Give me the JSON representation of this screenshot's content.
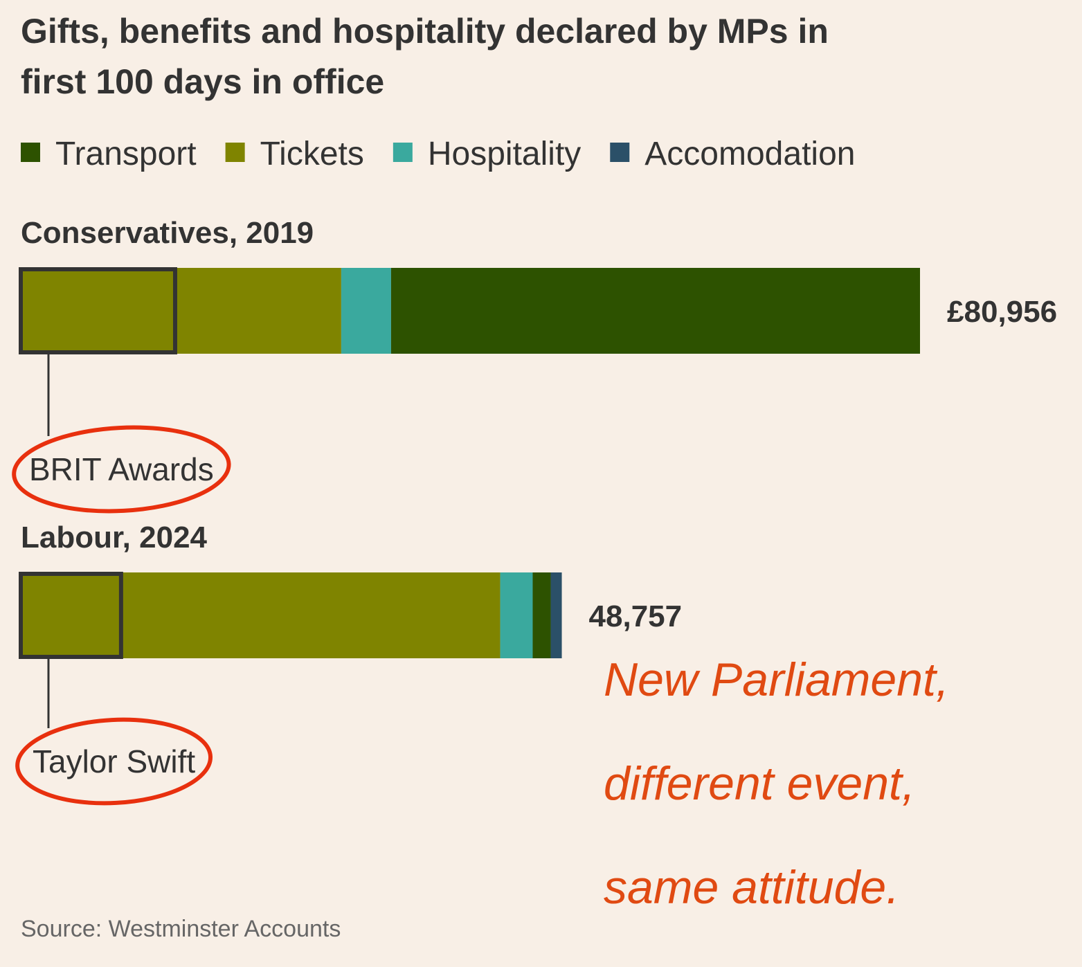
{
  "chart_data": {
    "type": "bar",
    "orientation": "horizontal",
    "stacked": true,
    "title": [
      "Gifts, benefits and hospitality declared by MPs in",
      "first 100 days in office"
    ],
    "categories": [
      "Conservatives, 2019",
      "Labour, 2024"
    ],
    "series": [
      {
        "name": "Transport",
        "color": "#2d5200",
        "values": [
          47546,
          1620
        ]
      },
      {
        "name": "Tickets",
        "color": "#7f8400",
        "values": [
          28930,
          43220
        ]
      },
      {
        "name": "Hospitality",
        "color": "#3aa99e",
        "values": [
          4480,
          2920
        ]
      },
      {
        "name": "Accomodation",
        "color": "#2b5068",
        "values": [
          0,
          997
        ]
      }
    ],
    "stack_order": [
      1,
      2,
      0,
      3
    ],
    "totals": [
      80956,
      48757
    ],
    "total_labels": [
      "£80,956",
      "48,757"
    ],
    "highlights": [
      {
        "label": "BRIT Awards",
        "value": 14000
      },
      {
        "label": "Taylor Swift",
        "value": 9140
      }
    ],
    "annotation": [
      "New Parliament,",
      "different event,",
      "same attitude."
    ],
    "source": "Source: Westminster Accounts"
  }
}
